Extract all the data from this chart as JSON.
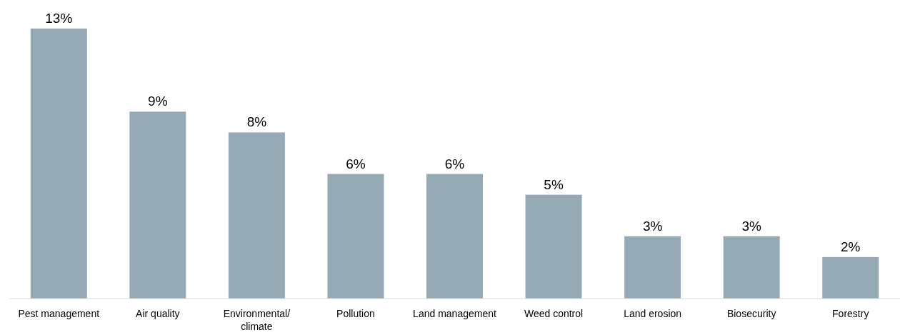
{
  "chart_data": {
    "type": "bar",
    "categories": [
      "Pest management",
      "Air quality",
      "Environmental/ climate",
      "Pollution",
      "Land management",
      "Weed control",
      "Land erosion",
      "Biosecurity",
      "Forestry"
    ],
    "values": [
      13,
      9,
      8,
      6,
      6,
      5,
      3,
      3,
      2
    ],
    "value_labels": [
      "13%",
      "9%",
      "8%",
      "6%",
      "6%",
      "5%",
      "3%",
      "3%",
      "2%"
    ],
    "color": "#95aab5"
  }
}
